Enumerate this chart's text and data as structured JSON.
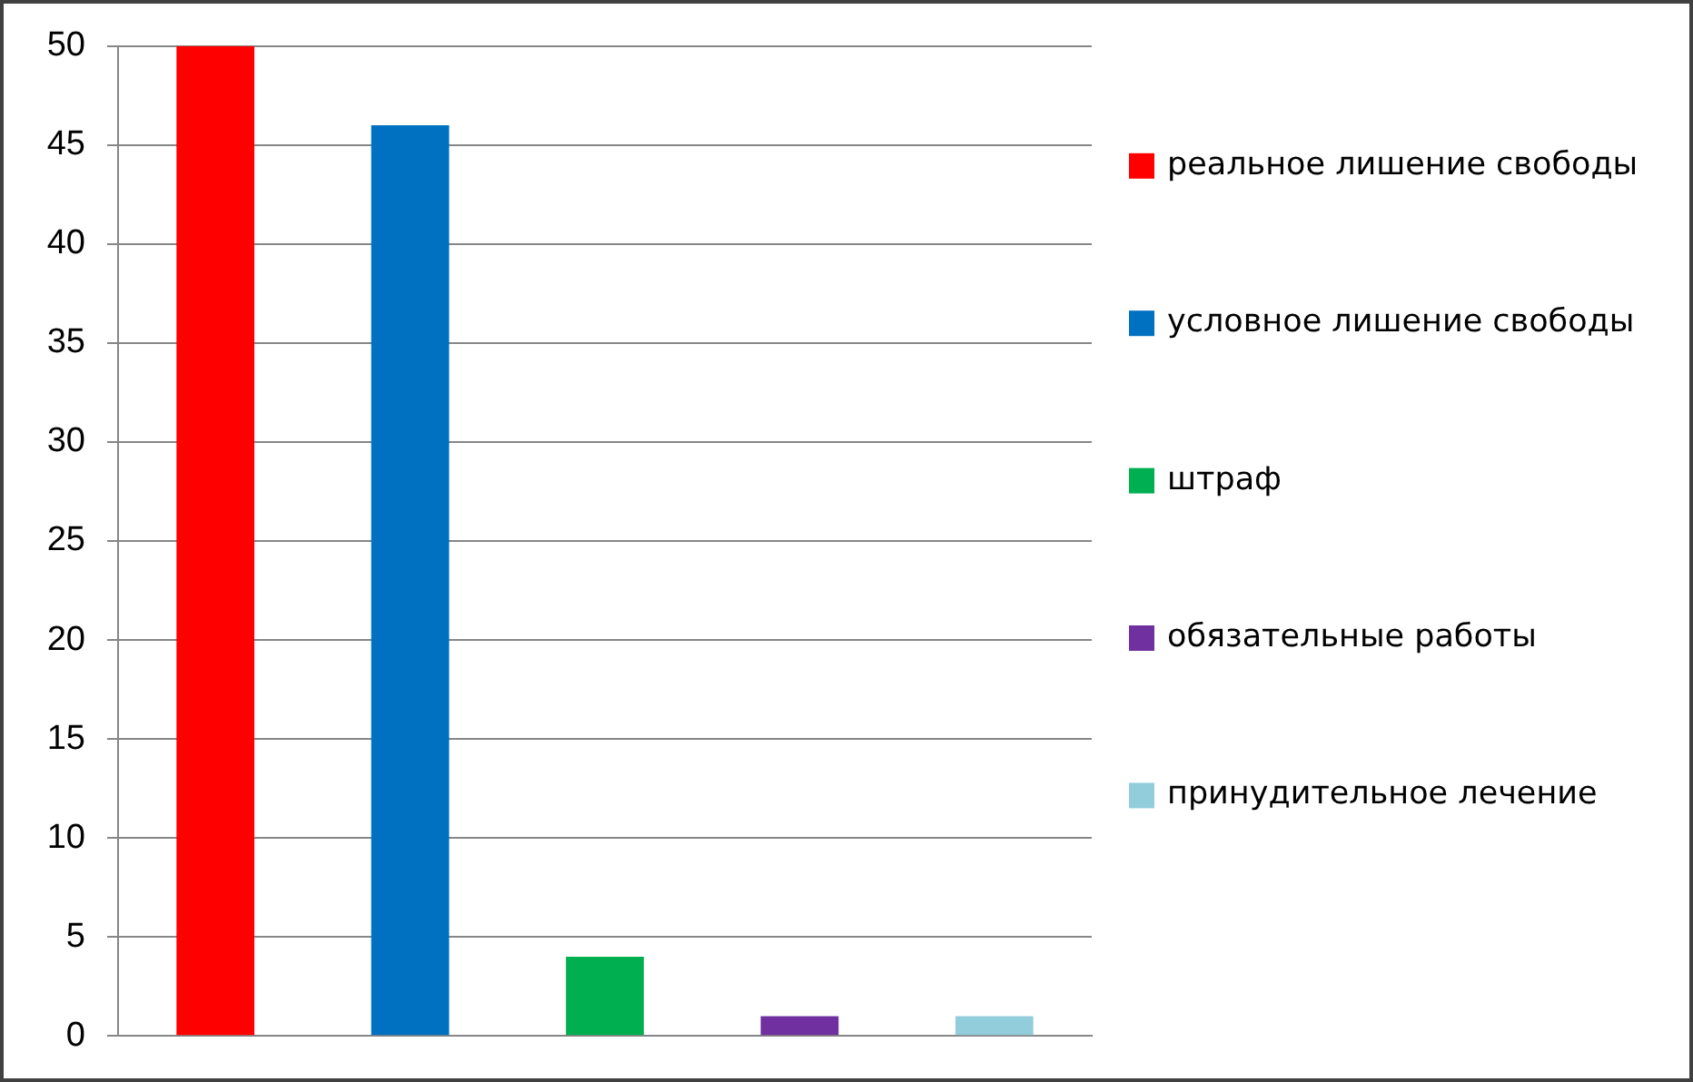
{
  "chart_data": {
    "type": "bar",
    "categories": [
      null,
      null,
      null,
      null,
      null
    ],
    "series": [
      {
        "name": "реальное лишение свободы",
        "color": "#ff0000",
        "values": [
          50,
          null,
          null,
          null,
          null
        ]
      },
      {
        "name": "условное лишение свободы",
        "color": "#0070c0",
        "values": [
          null,
          46,
          null,
          null,
          null
        ]
      },
      {
        "name": "штраф",
        "color": "#00b050",
        "values": [
          null,
          null,
          4,
          null,
          null
        ]
      },
      {
        "name": "обязательные работы",
        "color": "#7030a0",
        "values": [
          null,
          null,
          null,
          1,
          null
        ]
      },
      {
        "name": "принудительное лечение",
        "color": "#92cddc",
        "values": [
          null,
          null,
          null,
          null,
          1
        ]
      }
    ],
    "ylim": [
      0,
      50
    ],
    "yticks": [
      0,
      5,
      10,
      15,
      20,
      25,
      30,
      35,
      40,
      45,
      50
    ],
    "grid": "y",
    "legend": "right",
    "tick_labels": "y"
  }
}
